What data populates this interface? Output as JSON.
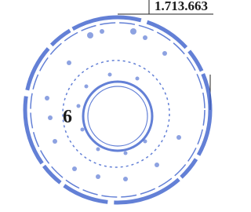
{
  "document": {
    "top_number": "1.713.663",
    "side_number": "6"
  }
}
